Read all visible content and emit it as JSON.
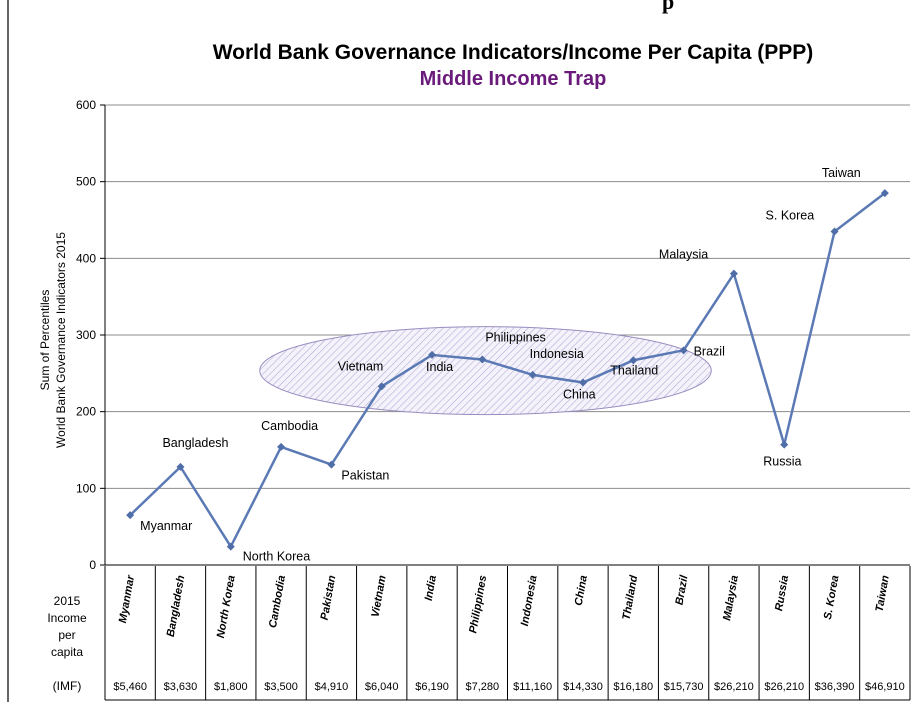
{
  "header_fragment": "p",
  "chart_data": {
    "type": "line",
    "title": "World Bank Governance Indicators/Income Per Capita (PPP)",
    "subtitle": "Middle Income Trap",
    "ylabel_lines": [
      "Sum of Percentiles",
      "World Bank Governance Indicators 2015"
    ],
    "ylim": [
      0,
      600
    ],
    "yticks": [
      0,
      100,
      200,
      300,
      400,
      500,
      600
    ],
    "grid": true,
    "categories": [
      "Myanmar",
      "Bangladesh",
      "North Korea",
      "Cambodia",
      "Pakistan",
      "Vietnam",
      "India",
      "Philippines",
      "Indonesia",
      "China",
      "Thailand",
      "Brazil",
      "Malaysia",
      "Russia",
      "S. Korea",
      "Taiwan"
    ],
    "values": [
      65,
      128,
      24,
      154,
      131,
      233,
      274,
      268,
      248,
      238,
      267,
      280,
      380,
      157,
      435,
      485
    ],
    "income_header": [
      "2015",
      "Income",
      "per",
      "capita",
      "(IMF)"
    ],
    "income_values": [
      "$5,460",
      "$3,630",
      "$1,800",
      "$3,500",
      "$4,910",
      "$6,040",
      "$6,190",
      "$7,280",
      "$11,160",
      "$14,330",
      "$16,180",
      "$15,730",
      "$26,210",
      "$26,210",
      "$36,390",
      "$46,910"
    ],
    "highlight": {
      "from": "Vietnam",
      "to": "Thailand"
    },
    "colors": {
      "line": "#5b7ab5",
      "marker": "#4f6ea8",
      "title": "#000000",
      "subtitle": "#6a1a7a",
      "grid": "#8c8c8c",
      "ellipse": "#9a8cc0"
    }
  }
}
